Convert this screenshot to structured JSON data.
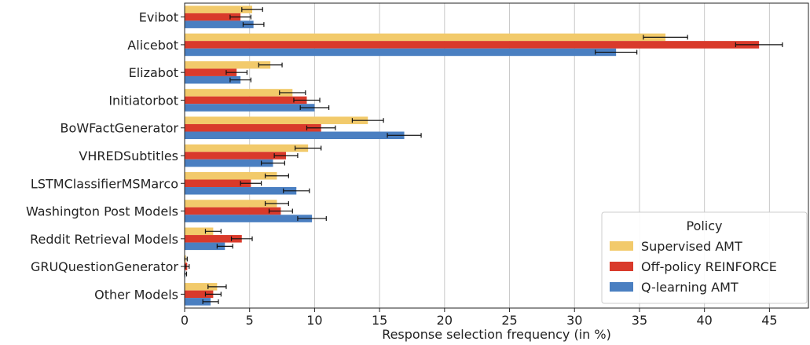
{
  "chart_data": {
    "type": "bar",
    "orientation": "horizontal",
    "title": "",
    "xlabel": "Response selection frequency (in %)",
    "ylabel": "",
    "xlim": [
      0,
      48
    ],
    "xticks": [
      0,
      5,
      10,
      15,
      20,
      25,
      30,
      35,
      40,
      45
    ],
    "grid": "vertical",
    "categories": [
      "Evibot",
      "Alicebot",
      "Elizabot",
      "Initiatorbot",
      "BoWFactGenerator",
      "VHREDSubtitles",
      "LSTMClassifierMSMarco",
      "Washington Post Models",
      "Reddit Retrieval Models",
      "GRUQuestionGenerator",
      "Other Models"
    ],
    "series": [
      {
        "name": "Supervised AMT",
        "color": "#f2ca6b",
        "values": [
          5.2,
          37.0,
          6.6,
          8.3,
          14.1,
          9.5,
          7.1,
          7.1,
          2.2,
          0.1,
          2.5
        ],
        "errors": [
          0.8,
          1.7,
          0.9,
          1.0,
          1.2,
          1.0,
          0.9,
          0.9,
          0.6,
          0.1,
          0.7
        ]
      },
      {
        "name": "Off-policy REINFORCE",
        "color": "#d93a2b",
        "values": [
          4.3,
          44.2,
          4.0,
          9.4,
          10.5,
          7.8,
          5.1,
          7.4,
          4.4,
          0.2,
          2.2
        ],
        "errors": [
          0.8,
          1.8,
          0.8,
          1.0,
          1.1,
          0.9,
          0.8,
          0.9,
          0.8,
          0.15,
          0.6
        ]
      },
      {
        "name": "Q-learning AMT",
        "color": "#4a7fc1",
        "values": [
          5.3,
          33.2,
          4.3,
          10.0,
          16.9,
          6.8,
          8.6,
          9.8,
          3.1,
          0.05,
          2.0
        ],
        "errors": [
          0.8,
          1.6,
          0.8,
          1.1,
          1.3,
          0.9,
          1.0,
          1.1,
          0.6,
          0.1,
          0.6
        ]
      }
    ],
    "legend": {
      "title": "Policy",
      "placement": "bottom-right"
    }
  }
}
